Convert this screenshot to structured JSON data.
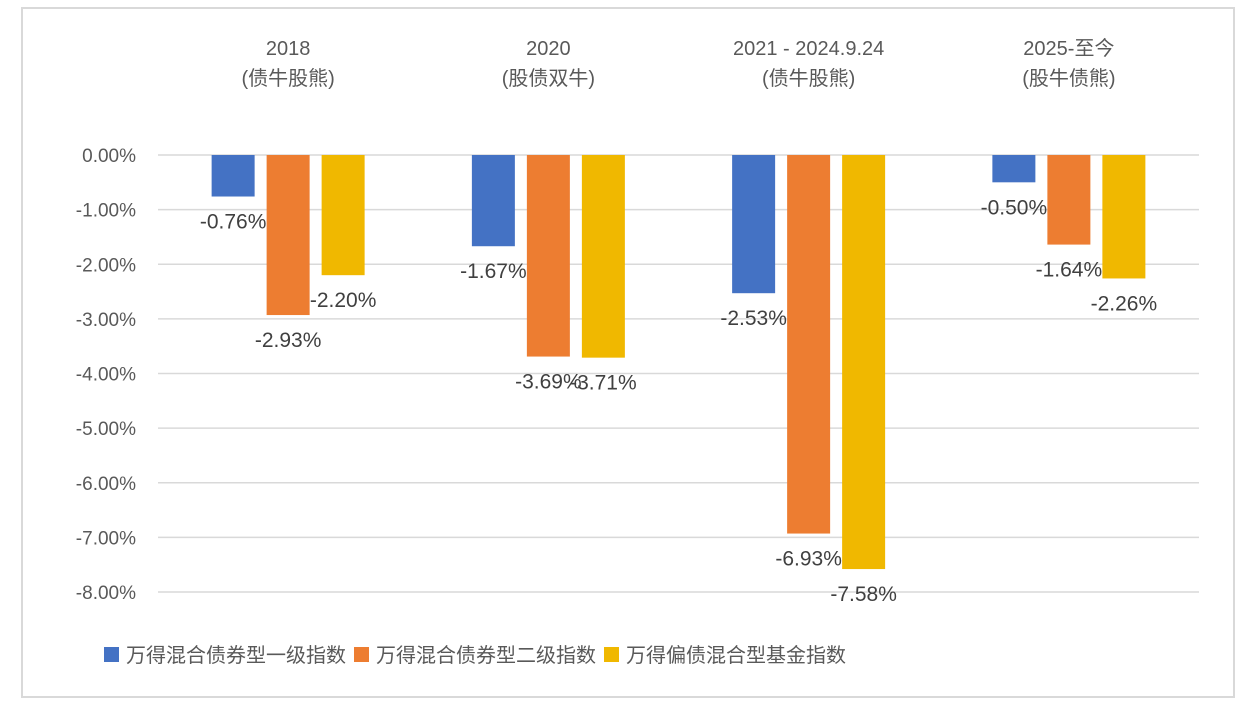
{
  "chart_data": {
    "type": "bar",
    "title": "",
    "xlabel": "",
    "ylabel": "",
    "categories": [
      {
        "line1": "2018",
        "line2": "(债牛股熊)"
      },
      {
        "line1": "2020",
        "line2": "(股债双牛)"
      },
      {
        "line1": "2021 - 2024.9.24",
        "line2": "(债牛股熊)"
      },
      {
        "line1": "2025-至今",
        "line2": "(股牛债熊)"
      }
    ],
    "series": [
      {
        "name": "万得混合债券型一级指数",
        "color": "#4472C4",
        "values": [
          -0.76,
          -1.67,
          -2.53,
          -0.5
        ],
        "labels": [
          "-0.76%",
          "-1.67%",
          "-2.53%",
          "-0.50%"
        ]
      },
      {
        "name": "万得混合债券型二级指数",
        "color": "#ED7D31",
        "values": [
          -2.93,
          -3.69,
          -6.93,
          -1.64
        ],
        "labels": [
          "-2.93%",
          "-3.69%",
          "-6.93%",
          "-1.64%"
        ]
      },
      {
        "name": "万得偏债混合型基金指数",
        "color": "#F0B800",
        "values": [
          -2.2,
          -3.71,
          -7.58,
          -2.26
        ],
        "labels": [
          "-2.20%",
          "-3.71%",
          "-7.58%",
          "-2.26%"
        ]
      }
    ],
    "ylim": [
      -8,
      0
    ],
    "yticks": [
      0,
      -1,
      -2,
      -3,
      -4,
      -5,
      -6,
      -7,
      -8
    ],
    "ytick_labels": [
      "0.00%",
      "-1.00%",
      "-2.00%",
      "-3.00%",
      "-4.00%",
      "-5.00%",
      "-6.00%",
      "-7.00%",
      "-8.00%"
    ],
    "category_axis_position": "top",
    "grid": true,
    "legend_position": "bottom"
  }
}
